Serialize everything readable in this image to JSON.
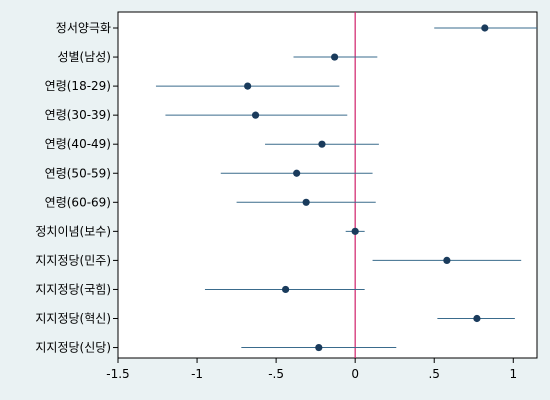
{
  "chart_data": {
    "type": "scatter",
    "title": "",
    "xlabel": "",
    "ylabel": "",
    "xlim": [
      -1.5,
      1.15
    ],
    "x_ticks": [
      -1.5,
      -1,
      -0.5,
      0,
      0.5,
      1
    ],
    "x_tick_labels": [
      "-1.5",
      "-1",
      "-.5",
      "0",
      ".5",
      "1"
    ],
    "reference_line_x": 0,
    "grid": false,
    "colors": {
      "background": "#eaf2f3",
      "plot_background": "#ffffff",
      "point": "#1a3b5c",
      "interval": "#3a6b8c",
      "reference": "#d0206a"
    },
    "categories": [
      "정서양극화",
      "성별(남성)",
      "연령(18-29)",
      "연령(30-39)",
      "연령(40-49)",
      "연령(50-59)",
      "연령(60-69)",
      "정치이념(보수)",
      "지지정당(민주)",
      "지지정당(국힘)",
      "지지정당(혁신)",
      "지지정당(신당)"
    ],
    "estimates": [
      0.82,
      -0.13,
      -0.68,
      -0.63,
      -0.21,
      -0.37,
      -0.31,
      0.0,
      0.58,
      -0.44,
      0.77,
      -0.23
    ],
    "ci_low": [
      0.5,
      -0.39,
      -1.26,
      -1.2,
      -0.57,
      -0.85,
      -0.75,
      -0.06,
      0.11,
      -0.95,
      0.52,
      -0.72
    ],
    "ci_high": [
      1.15,
      0.14,
      -0.1,
      -0.05,
      0.15,
      0.11,
      0.13,
      0.06,
      1.05,
      0.06,
      1.01,
      0.26
    ]
  }
}
